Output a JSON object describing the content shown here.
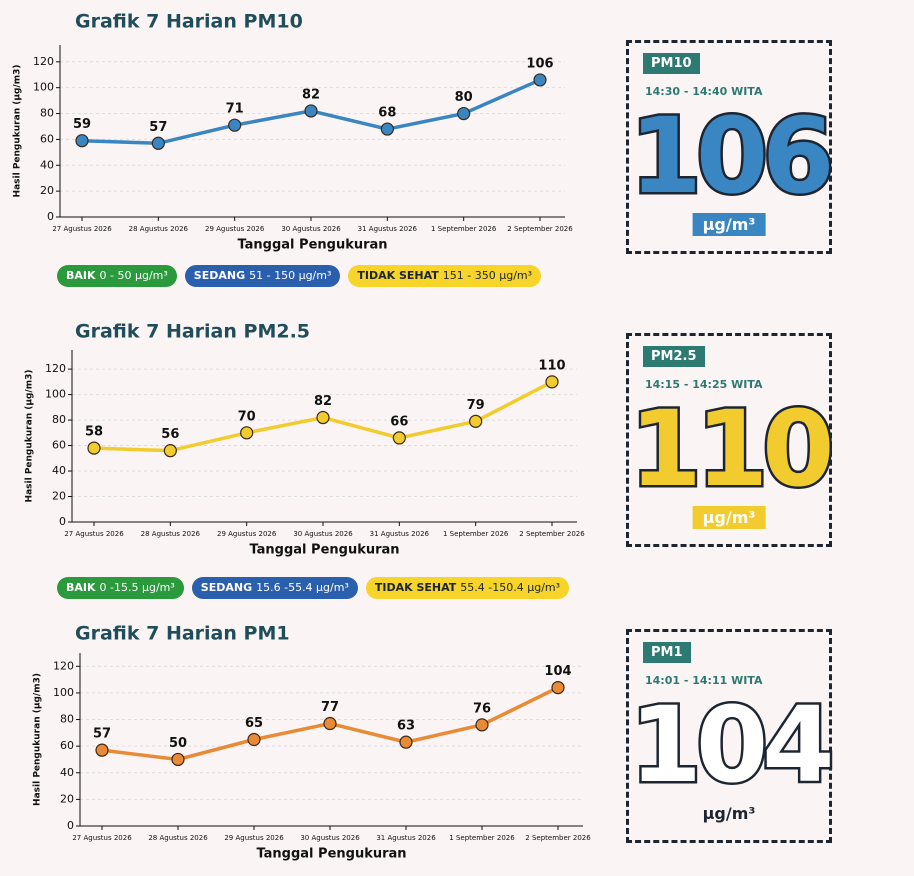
{
  "chart_data": [
    {
      "type": "line",
      "title": "Grafik 7 Harian PM10",
      "x_label": "Tanggal Pengukuran",
      "y_label": "Hasil Pengukuran (µg/m3)",
      "categories": [
        "27 Agustus 2026",
        "28 Agustus 2026",
        "29 Agustus 2026",
        "30 Agustus 2026",
        "31 Agustus 2026",
        "1 September 2026",
        "2 September 2026"
      ],
      "values": [
        59,
        57,
        71,
        82,
        68,
        80,
        106
      ],
      "color": "#3a86c2",
      "ylim": [
        0,
        133
      ],
      "yticks": [
        0,
        20,
        40,
        60,
        80,
        100,
        120
      ],
      "grid": true
    },
    {
      "type": "line",
      "title": "Grafik 7 Harian PM2.5",
      "x_label": "Tanggal Pengukuran",
      "y_label": "Hasil Pengukuran (µg/m3)",
      "categories": [
        "27 Agustus 2026",
        "28 Agustus 2026",
        "29 Agustus 2026",
        "30 Agustus 2026",
        "31 Agustus 2026",
        "1 September 2026",
        "2 September 2026"
      ],
      "values": [
        58,
        56,
        70,
        82,
        66,
        79,
        110
      ],
      "color": "#f2cc2e",
      "ylim": [
        0,
        135
      ],
      "yticks": [
        0,
        20,
        40,
        60,
        80,
        100,
        120
      ],
      "grid": true
    },
    {
      "type": "line",
      "title": "Grafik 7 Harian PM1",
      "x_label": "Tanggal Pengukuran",
      "y_label": "Hasil Pengukuran (µg/m3)",
      "categories": [
        "27 Agustus 2026",
        "28 Agustus 2026",
        "29 Agustus 2026",
        "30 Agustus 2026",
        "31 Agustus 2026",
        "1 September 2026",
        "2 September 2026"
      ],
      "values": [
        57,
        50,
        65,
        77,
        63,
        76,
        104
      ],
      "color": "#e88a36",
      "ylim": [
        0,
        130
      ],
      "yticks": [
        0,
        20,
        40,
        60,
        80,
        100,
        120
      ],
      "grid": true
    }
  ],
  "legends": [
    {
      "items": [
        {
          "label": "BAIK",
          "range": "0 - 50 µg/m³",
          "color": "#2b9a3c",
          "text_color": "#ffffff"
        },
        {
          "label": "SEDANG",
          "range": "51 - 150 µg/m³",
          "color": "#2a5fae",
          "text_color": "#ffffff"
        },
        {
          "label": "TIDAK SEHAT",
          "range": "151 - 350 µg/m³",
          "color": "#f6d42a",
          "text_color": "#1d2530"
        }
      ]
    },
    {
      "items": [
        {
          "label": "BAIK",
          "range": "0 -15.5 µg/m³",
          "color": "#2b9a3c",
          "text_color": "#ffffff"
        },
        {
          "label": "SEDANG",
          "range": "15.6 -55.4 µg/m³",
          "color": "#2a5fae",
          "text_color": "#ffffff"
        },
        {
          "label": "TIDAK SEHAT",
          "range": "55.4 -150.4 µg/m³",
          "color": "#f6d42a",
          "text_color": "#1d2530"
        }
      ]
    }
  ],
  "panels": [
    {
      "pollutant": "PM10",
      "time": "14:30 - 14:40 WITA",
      "value": "106",
      "unit": "µg/m³",
      "color": "#3a86c2",
      "unit_background": "#3a86c2",
      "unit_color": "#ffffff"
    },
    {
      "pollutant": "PM2.5",
      "time": "14:15 - 14:25 WITA",
      "value": "110",
      "unit": "µg/m³",
      "color": "#f2cc2e",
      "unit_background": "#f2cc2e",
      "unit_color": "#ffffff"
    },
    {
      "pollutant": "PM1",
      "time": "14:01 - 14:11 WITA",
      "value": "104",
      "unit": "µg/m³",
      "color": "#ffffff",
      "unit_background": "transparent",
      "unit_color": "#1d2530"
    }
  ]
}
